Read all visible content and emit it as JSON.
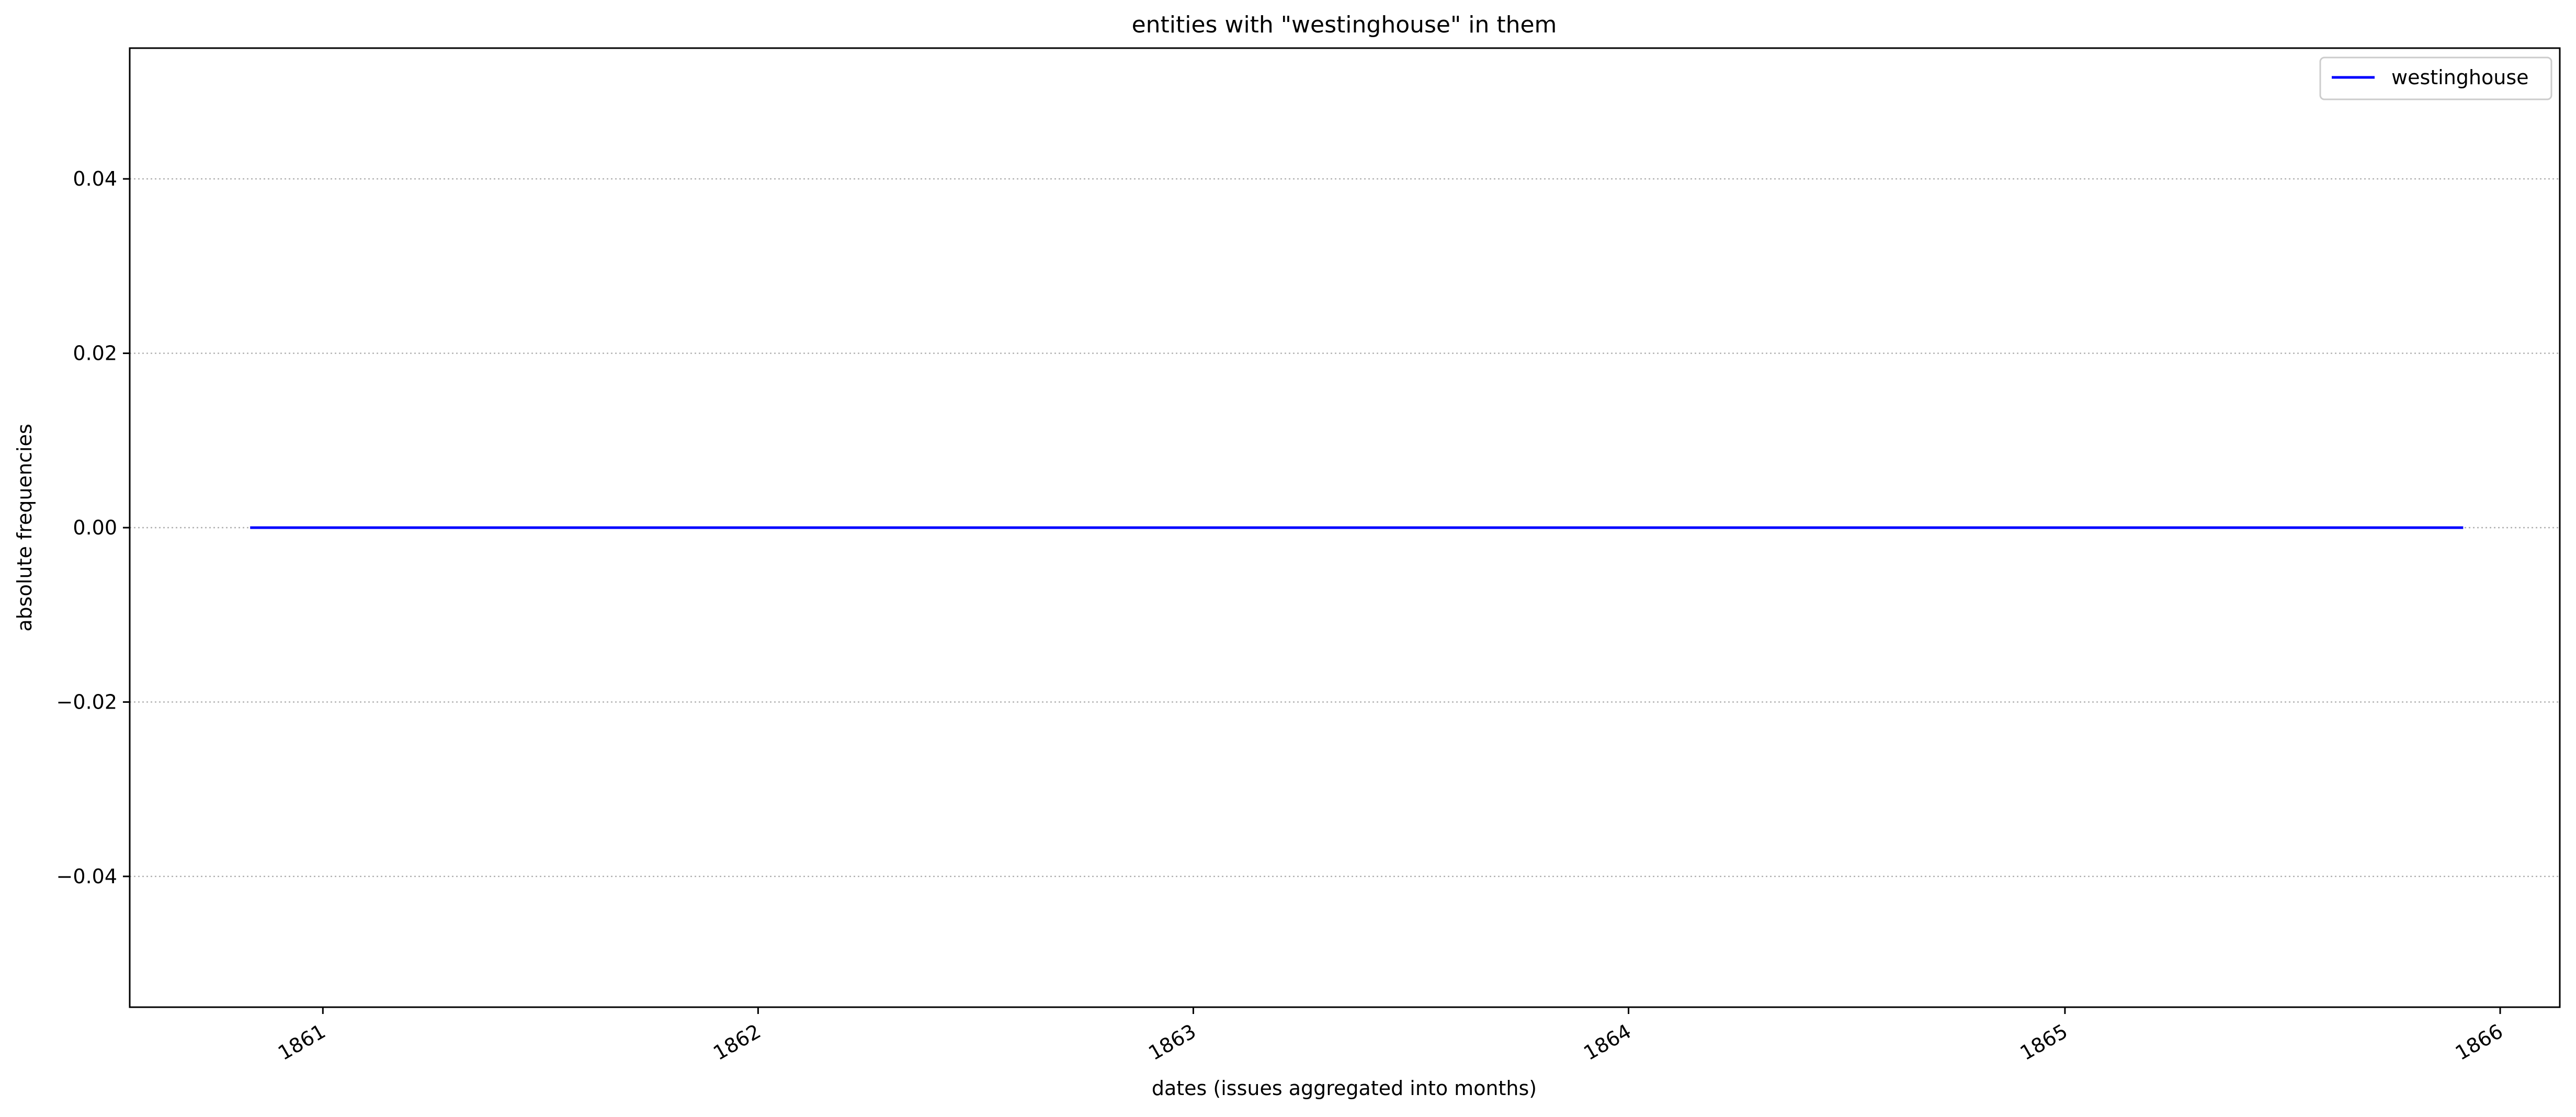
{
  "chart_data": {
    "type": "line",
    "title": "entities with \"westinghouse\" in them",
    "xlabel": "dates (issues aggregated into months)",
    "ylabel": "absolute frequencies",
    "x_ticks": [
      "1861",
      "1862",
      "1863",
      "1864",
      "1865",
      "1866"
    ],
    "y_ticks": [
      "−0.04",
      "−0.02",
      "0.00",
      "0.02",
      "0.04"
    ],
    "xlim": [
      "1860-07-23",
      "1866-02-20"
    ],
    "ylim": [
      -0.055,
      0.055
    ],
    "grid": "y-axis, dotted",
    "legend": "top-right",
    "series": [
      {
        "name": "westinghouse",
        "color": "#0000ff",
        "x": [
          "1860-11",
          "1865-12"
        ],
        "values": [
          0,
          0
        ]
      }
    ]
  }
}
